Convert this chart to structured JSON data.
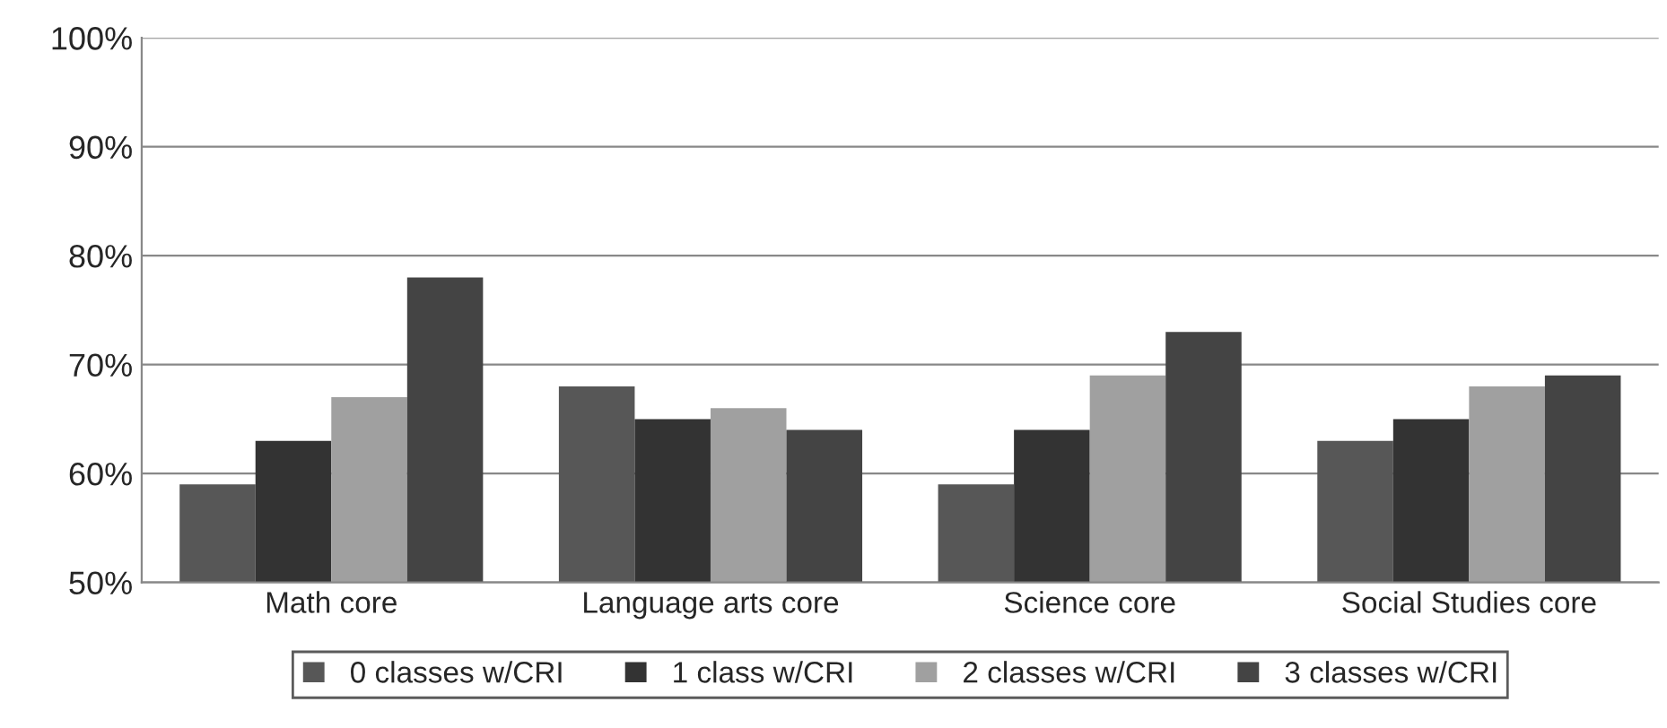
{
  "chart_data": {
    "type": "bar",
    "categories": [
      "Math core",
      "Language arts core",
      "Science core",
      "Social Studies core"
    ],
    "series": [
      {
        "name": "0 classes w/CRI",
        "color": "#575757",
        "values": [
          59,
          68,
          59,
          63
        ]
      },
      {
        "name": "1 class w/CRI",
        "color": "#333333",
        "values": [
          63,
          65,
          64,
          65
        ]
      },
      {
        "name": "2 classes w/CRI",
        "color": "#a0a0a0",
        "values": [
          67,
          66,
          69,
          68
        ]
      },
      {
        "name": "3 classes w/CRI",
        "color": "#444444",
        "values": [
          78,
          64,
          73,
          69
        ]
      }
    ],
    "ylim": [
      50,
      100
    ],
    "yticks": [
      {
        "value": 50,
        "label": "50%"
      },
      {
        "value": 60,
        "label": "60%"
      },
      {
        "value": 70,
        "label": "70%"
      },
      {
        "value": 80,
        "label": "80%"
      },
      {
        "value": 90,
        "label": "90%"
      },
      {
        "value": 100,
        "label": "100%"
      }
    ],
    "grid": "y",
    "legend": "bottom"
  }
}
